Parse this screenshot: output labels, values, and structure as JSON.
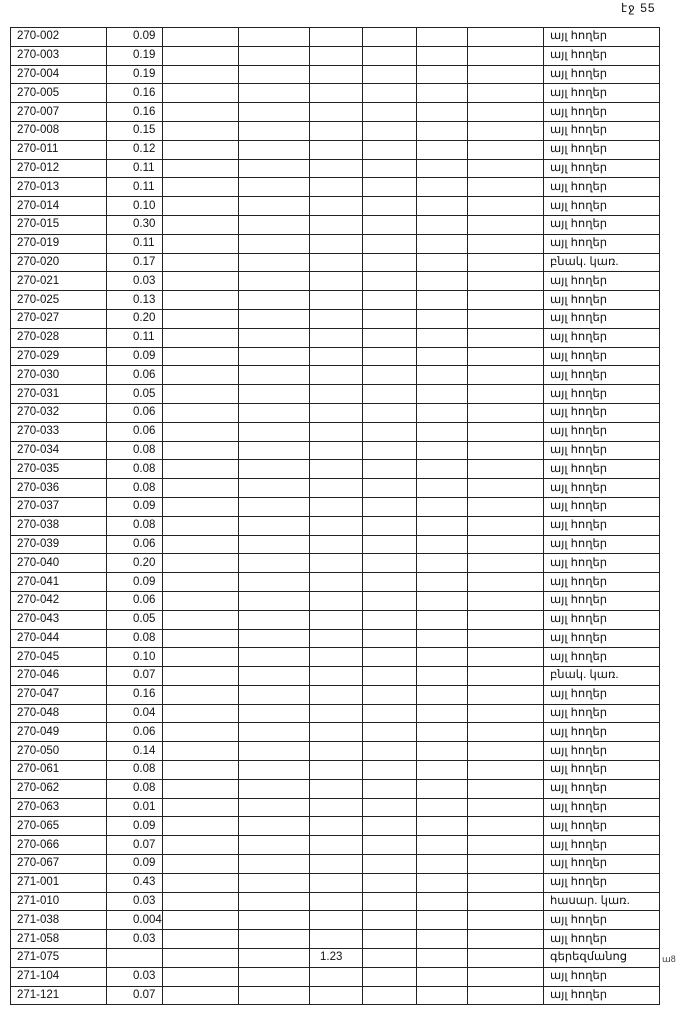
{
  "page_number": "էջ 55",
  "side_mark": "ա8",
  "rows": [
    [
      "270-002",
      "0.09",
      "",
      "",
      "",
      "",
      "",
      "",
      "այլ հողեր"
    ],
    [
      "270-003",
      "0.19",
      "",
      "",
      "",
      "",
      "",
      "",
      "այլ հողեր"
    ],
    [
      "270-004",
      "0.19",
      "",
      "",
      "",
      "",
      "",
      "",
      "այլ հողեր"
    ],
    [
      "270-005",
      "0.16",
      "",
      "",
      "",
      "",
      "",
      "",
      "այլ հողեր"
    ],
    [
      "270-007",
      "0.16",
      "",
      "",
      "",
      "",
      "",
      "",
      "այլ հողեր"
    ],
    [
      "270-008",
      "0.15",
      "",
      "",
      "",
      "",
      "",
      "",
      "այլ հողեր"
    ],
    [
      "270-011",
      "0.12",
      "",
      "",
      "",
      "",
      "",
      "",
      "այլ հողեր"
    ],
    [
      "270-012",
      "0.11",
      "",
      "",
      "",
      "",
      "",
      "",
      "այլ հողեր"
    ],
    [
      "270-013",
      "0.11",
      "",
      "",
      "",
      "",
      "",
      "",
      "այլ հողեր"
    ],
    [
      "270-014",
      "0.10",
      "",
      "",
      "",
      "",
      "",
      "",
      "այլ հողեր"
    ],
    [
      "270-015",
      "0.30",
      "",
      "",
      "",
      "",
      "",
      "",
      "այլ հողեր"
    ],
    [
      "270-019",
      "0.11",
      "",
      "",
      "",
      "",
      "",
      "",
      "այլ հողեր"
    ],
    [
      "270-020",
      "0.17",
      "",
      "",
      "",
      "",
      "",
      "",
      "բնակ. կառ."
    ],
    [
      "270-021",
      "0.03",
      "",
      "",
      "",
      "",
      "",
      "",
      "այլ հողեր"
    ],
    [
      "270-025",
      "0.13",
      "",
      "",
      "",
      "",
      "",
      "",
      "այլ հողեր"
    ],
    [
      "270-027",
      "0.20",
      "",
      "",
      "",
      "",
      "",
      "",
      "այլ հողեր"
    ],
    [
      "270-028",
      "0.11",
      "",
      "",
      "",
      "",
      "",
      "",
      "այլ հողեր"
    ],
    [
      "270-029",
      "0.09",
      "",
      "",
      "",
      "",
      "",
      "",
      "այլ հողեր"
    ],
    [
      "270-030",
      "0.06",
      "",
      "",
      "",
      "",
      "",
      "",
      "այլ հողեր"
    ],
    [
      "270-031",
      "0.05",
      "",
      "",
      "",
      "",
      "",
      "",
      "այլ հողեր"
    ],
    [
      "270-032",
      "0.06",
      "",
      "",
      "",
      "",
      "",
      "",
      "այլ հողեր"
    ],
    [
      "270-033",
      "0.06",
      "",
      "",
      "",
      "",
      "",
      "",
      "այլ հողեր"
    ],
    [
      "270-034",
      "0.08",
      "",
      "",
      "",
      "",
      "",
      "",
      "այլ հողեր"
    ],
    [
      "270-035",
      "0.08",
      "",
      "",
      "",
      "",
      "",
      "",
      "այլ հողեր"
    ],
    [
      "270-036",
      "0.08",
      "",
      "",
      "",
      "",
      "",
      "",
      "այլ հողեր"
    ],
    [
      "270-037",
      "0.09",
      "",
      "",
      "",
      "",
      "",
      "",
      "այլ հողեր"
    ],
    [
      "270-038",
      "0.08",
      "",
      "",
      "",
      "",
      "",
      "",
      "այլ հողեր"
    ],
    [
      "270-039",
      "0.06",
      "",
      "",
      "",
      "",
      "",
      "",
      "այլ հողեր"
    ],
    [
      "270-040",
      "0.20",
      "",
      "",
      "",
      "",
      "",
      "",
      "այլ հողեր"
    ],
    [
      "270-041",
      "0.09",
      "",
      "",
      "",
      "",
      "",
      "",
      "այլ հողեր"
    ],
    [
      "270-042",
      "0.06",
      "",
      "",
      "",
      "",
      "",
      "",
      "այլ հողեր"
    ],
    [
      "270-043",
      "0.05",
      "",
      "",
      "",
      "",
      "",
      "",
      "այլ հողեր"
    ],
    [
      "270-044",
      "0.08",
      "",
      "",
      "",
      "",
      "",
      "",
      "այլ հողեր"
    ],
    [
      "270-045",
      "0.10",
      "",
      "",
      "",
      "",
      "",
      "",
      "այլ հողեր"
    ],
    [
      "270-046",
      "0.07",
      "",
      "",
      "",
      "",
      "",
      "",
      "բնակ. կառ."
    ],
    [
      "270-047",
      "0.16",
      "",
      "",
      "",
      "",
      "",
      "",
      "այլ հողեր"
    ],
    [
      "270-048",
      "0.04",
      "",
      "",
      "",
      "",
      "",
      "",
      "այլ հողեր"
    ],
    [
      "270-049",
      "0.06",
      "",
      "",
      "",
      "",
      "",
      "",
      "այլ հողեր"
    ],
    [
      "270-050",
      "0.14",
      "",
      "",
      "",
      "",
      "",
      "",
      "այլ հողեր"
    ],
    [
      "270-061",
      "0.08",
      "",
      "",
      "",
      "",
      "",
      "",
      "այլ հողեր"
    ],
    [
      "270-062",
      "0.08",
      "",
      "",
      "",
      "",
      "",
      "",
      "այլ հողեր"
    ],
    [
      "270-063",
      "0.01",
      "",
      "",
      "",
      "",
      "",
      "",
      "այլ հողեր"
    ],
    [
      "270-065",
      "0.09",
      "",
      "",
      "",
      "",
      "",
      "",
      "այլ հողեր"
    ],
    [
      "270-066",
      "0.07",
      "",
      "",
      "",
      "",
      "",
      "",
      "այլ հողեր"
    ],
    [
      "270-067",
      "0.09",
      "",
      "",
      "",
      "",
      "",
      "",
      "այլ հողեր"
    ],
    [
      "271-001",
      "0.43",
      "",
      "",
      "",
      "",
      "",
      "",
      "այլ հողեր"
    ],
    [
      "271-010",
      "0.03",
      "",
      "",
      "",
      "",
      "",
      "",
      "հասար. կառ."
    ],
    [
      "271-038",
      "0.004",
      "",
      "",
      "",
      "",
      "",
      "",
      "այլ հողեր"
    ],
    [
      "271-058",
      "0.03",
      "",
      "",
      "",
      "",
      "",
      "",
      "այլ հողեր"
    ],
    [
      "271-075",
      "",
      "",
      "",
      "1.23",
      "",
      "",
      "",
      "գերեզմանոց"
    ],
    [
      "271-104",
      "0.03",
      "",
      "",
      "",
      "",
      "",
      "",
      "այլ հողեր"
    ],
    [
      "271-121",
      "0.07",
      "",
      "",
      "",
      "",
      "",
      "",
      "այլ հողեր"
    ]
  ]
}
